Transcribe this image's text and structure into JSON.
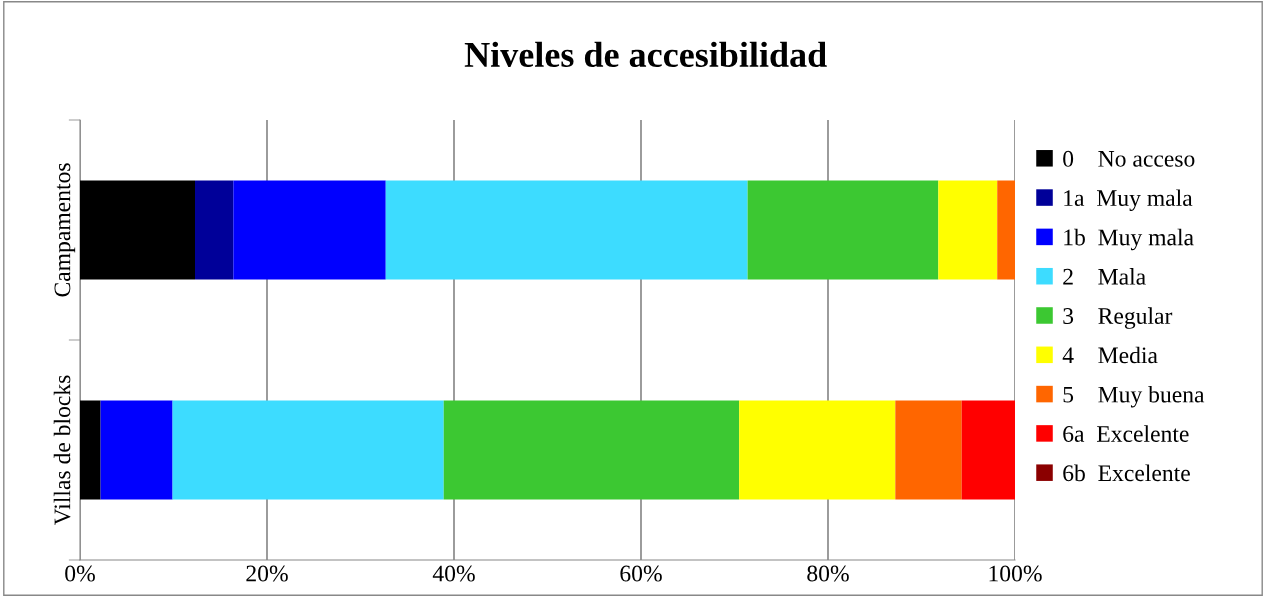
{
  "chart_data": {
    "type": "bar",
    "orientation": "horizontal",
    "stacked": true,
    "title": "Niveles de accesibilidad",
    "categories": [
      "Campamentos",
      "Villas de blocks"
    ],
    "series": [
      {
        "name": "0    No acceso",
        "color": "#000000",
        "values": [
          12.3,
          2.2
        ]
      },
      {
        "name": "1a  Muy mala",
        "color": "#000099",
        "values": [
          4.1,
          0
        ]
      },
      {
        "name": "1b  Muy mala",
        "color": "#0000ff",
        "values": [
          16.3,
          7.7
        ]
      },
      {
        "name": "2    Mala",
        "color": "#3ddcff",
        "values": [
          38.7,
          29.0
        ]
      },
      {
        "name": "3    Regular",
        "color": "#3cc832",
        "values": [
          20.4,
          31.6
        ]
      },
      {
        "name": "4    Media",
        "color": "#ffff00",
        "values": [
          6.3,
          16.7
        ]
      },
      {
        "name": "5    Muy buena",
        "color": "#ff6600",
        "values": [
          1.9,
          7.1
        ]
      },
      {
        "name": "6a  Excelente",
        "color": "#ff0000",
        "values": [
          0,
          5.7
        ]
      },
      {
        "name": "6b  Excelente",
        "color": "#8b0000",
        "values": [
          0,
          0
        ]
      }
    ],
    "xlim": [
      0,
      100
    ],
    "xticks": [
      {
        "value": 0,
        "label": "0%"
      },
      {
        "value": 20,
        "label": "20%"
      },
      {
        "value": 40,
        "label": "40%"
      },
      {
        "value": 60,
        "label": "60%"
      },
      {
        "value": 80,
        "label": "80%"
      },
      {
        "value": 100,
        "label": "100%"
      }
    ],
    "grid": "x",
    "legend": "right"
  }
}
